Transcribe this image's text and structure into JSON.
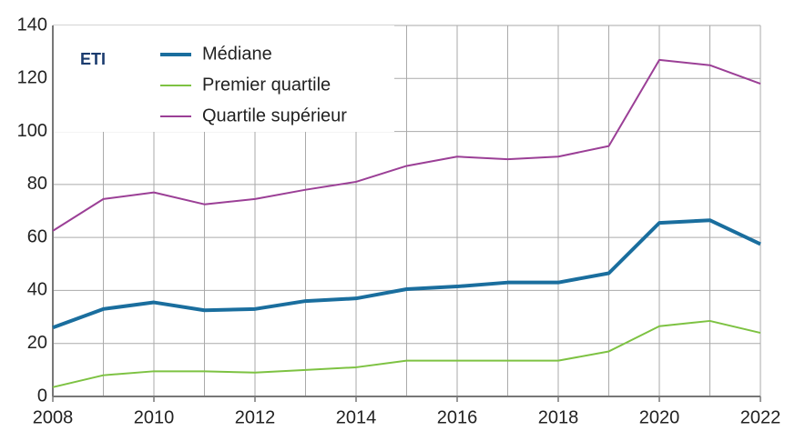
{
  "chart_data": {
    "type": "line",
    "annotation": "ETI",
    "x": [
      2008,
      2009,
      2010,
      2011,
      2012,
      2013,
      2014,
      2015,
      2016,
      2017,
      2018,
      2019,
      2020,
      2021,
      2022
    ],
    "series": [
      {
        "name": "Médiane",
        "color": "#1a6e9e",
        "values": [
          26,
          33,
          35.5,
          32.5,
          33,
          36,
          37,
          40.5,
          41.5,
          43,
          43,
          46.5,
          65.5,
          66.5,
          57.5
        ]
      },
      {
        "name": "Premier quartile",
        "color": "#7dc242",
        "values": [
          3.5,
          8,
          9.5,
          9.5,
          9,
          10,
          11,
          13.5,
          13.5,
          13.5,
          13.5,
          17,
          26.5,
          28.5,
          24
        ]
      },
      {
        "name": "Quartile supérieur",
        "color": "#9b3f96",
        "values": [
          62.5,
          74.5,
          77,
          72.5,
          74.5,
          78,
          81,
          87,
          90.5,
          89.5,
          90.5,
          94.5,
          127,
          125,
          118
        ]
      }
    ],
    "xlim": [
      2008,
      2022
    ],
    "xticks": [
      2008,
      2010,
      2012,
      2014,
      2016,
      2018,
      2020,
      2022
    ],
    "ylim": [
      0,
      140
    ],
    "yticks": [
      0,
      20,
      40,
      60,
      80,
      100,
      120,
      140
    ],
    "grid": true
  }
}
